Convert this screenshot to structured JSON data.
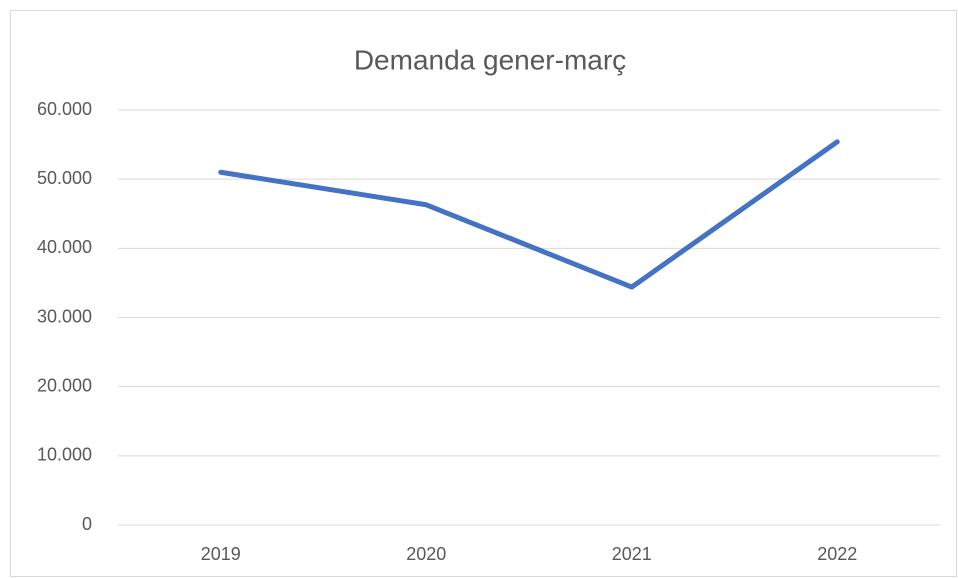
{
  "chart_data": {
    "type": "line",
    "title": "Demanda gener-març",
    "categories": [
      "2019",
      "2020",
      "2021",
      "2022"
    ],
    "series": [
      {
        "name": "Demanda",
        "color": "#4472c4",
        "values": [
          51000,
          46300,
          34400,
          55400
        ]
      }
    ],
    "ylim": [
      0,
      60000
    ],
    "yticks": [
      0,
      {
        "value": 10000,
        "label": "10.000"
      },
      {
        "value": 20000,
        "label": "20.000"
      },
      {
        "value": 30000,
        "label": "30.000"
      },
      {
        "value": 40000,
        "label": "40.000"
      },
      {
        "value": 50000,
        "label": "50.000"
      },
      {
        "value": 60000,
        "label": "60.000"
      }
    ],
    "grid": true
  }
}
